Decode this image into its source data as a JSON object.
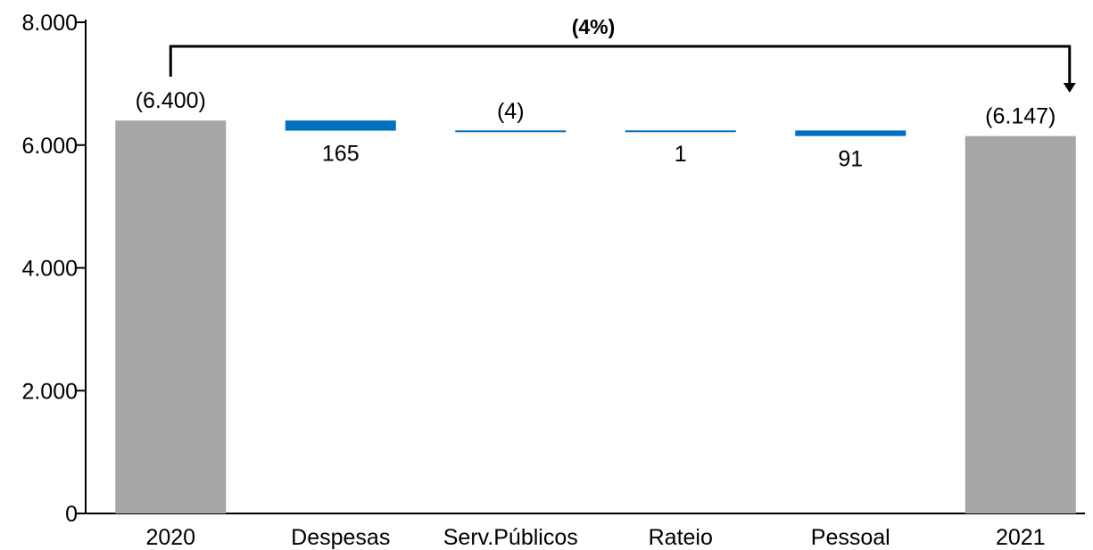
{
  "chart_data": {
    "type": "bar",
    "subtype": "waterfall",
    "title": "",
    "xlabel": "",
    "ylabel": "",
    "ylim": [
      0,
      8000
    ],
    "yticks": [
      0,
      2000,
      4000,
      6000,
      8000
    ],
    "ytick_labels": [
      "0",
      "2.000",
      "4.000",
      "6.000",
      "8.000"
    ],
    "grid": false,
    "legend": "none",
    "categories": [
      "2020",
      "Despesas",
      "Serv.Públicos",
      "Rateio",
      "Pessoal",
      "2021"
    ],
    "bars": [
      {
        "category": "2020",
        "kind": "total",
        "value": 6400,
        "label": "(6.400)",
        "color": "#a6a6a6"
      },
      {
        "category": "Despesas",
        "kind": "step",
        "value": 165,
        "label": "165",
        "color": "#0070c0"
      },
      {
        "category": "Serv.Públicos",
        "kind": "step",
        "value": -4,
        "label": "(4)",
        "color": "#0070c0"
      },
      {
        "category": "Rateio",
        "kind": "step",
        "value": 1,
        "label": "1",
        "color": "#0070c0"
      },
      {
        "category": "Pessoal",
        "kind": "step",
        "value": 91,
        "label": "91",
        "color": "#0070c0"
      },
      {
        "category": "2021",
        "kind": "total",
        "value": 6147,
        "label": "(6.147)",
        "color": "#a6a6a6"
      }
    ],
    "annotation": {
      "from": "2020",
      "to": "2021",
      "label": "(4%)"
    }
  }
}
